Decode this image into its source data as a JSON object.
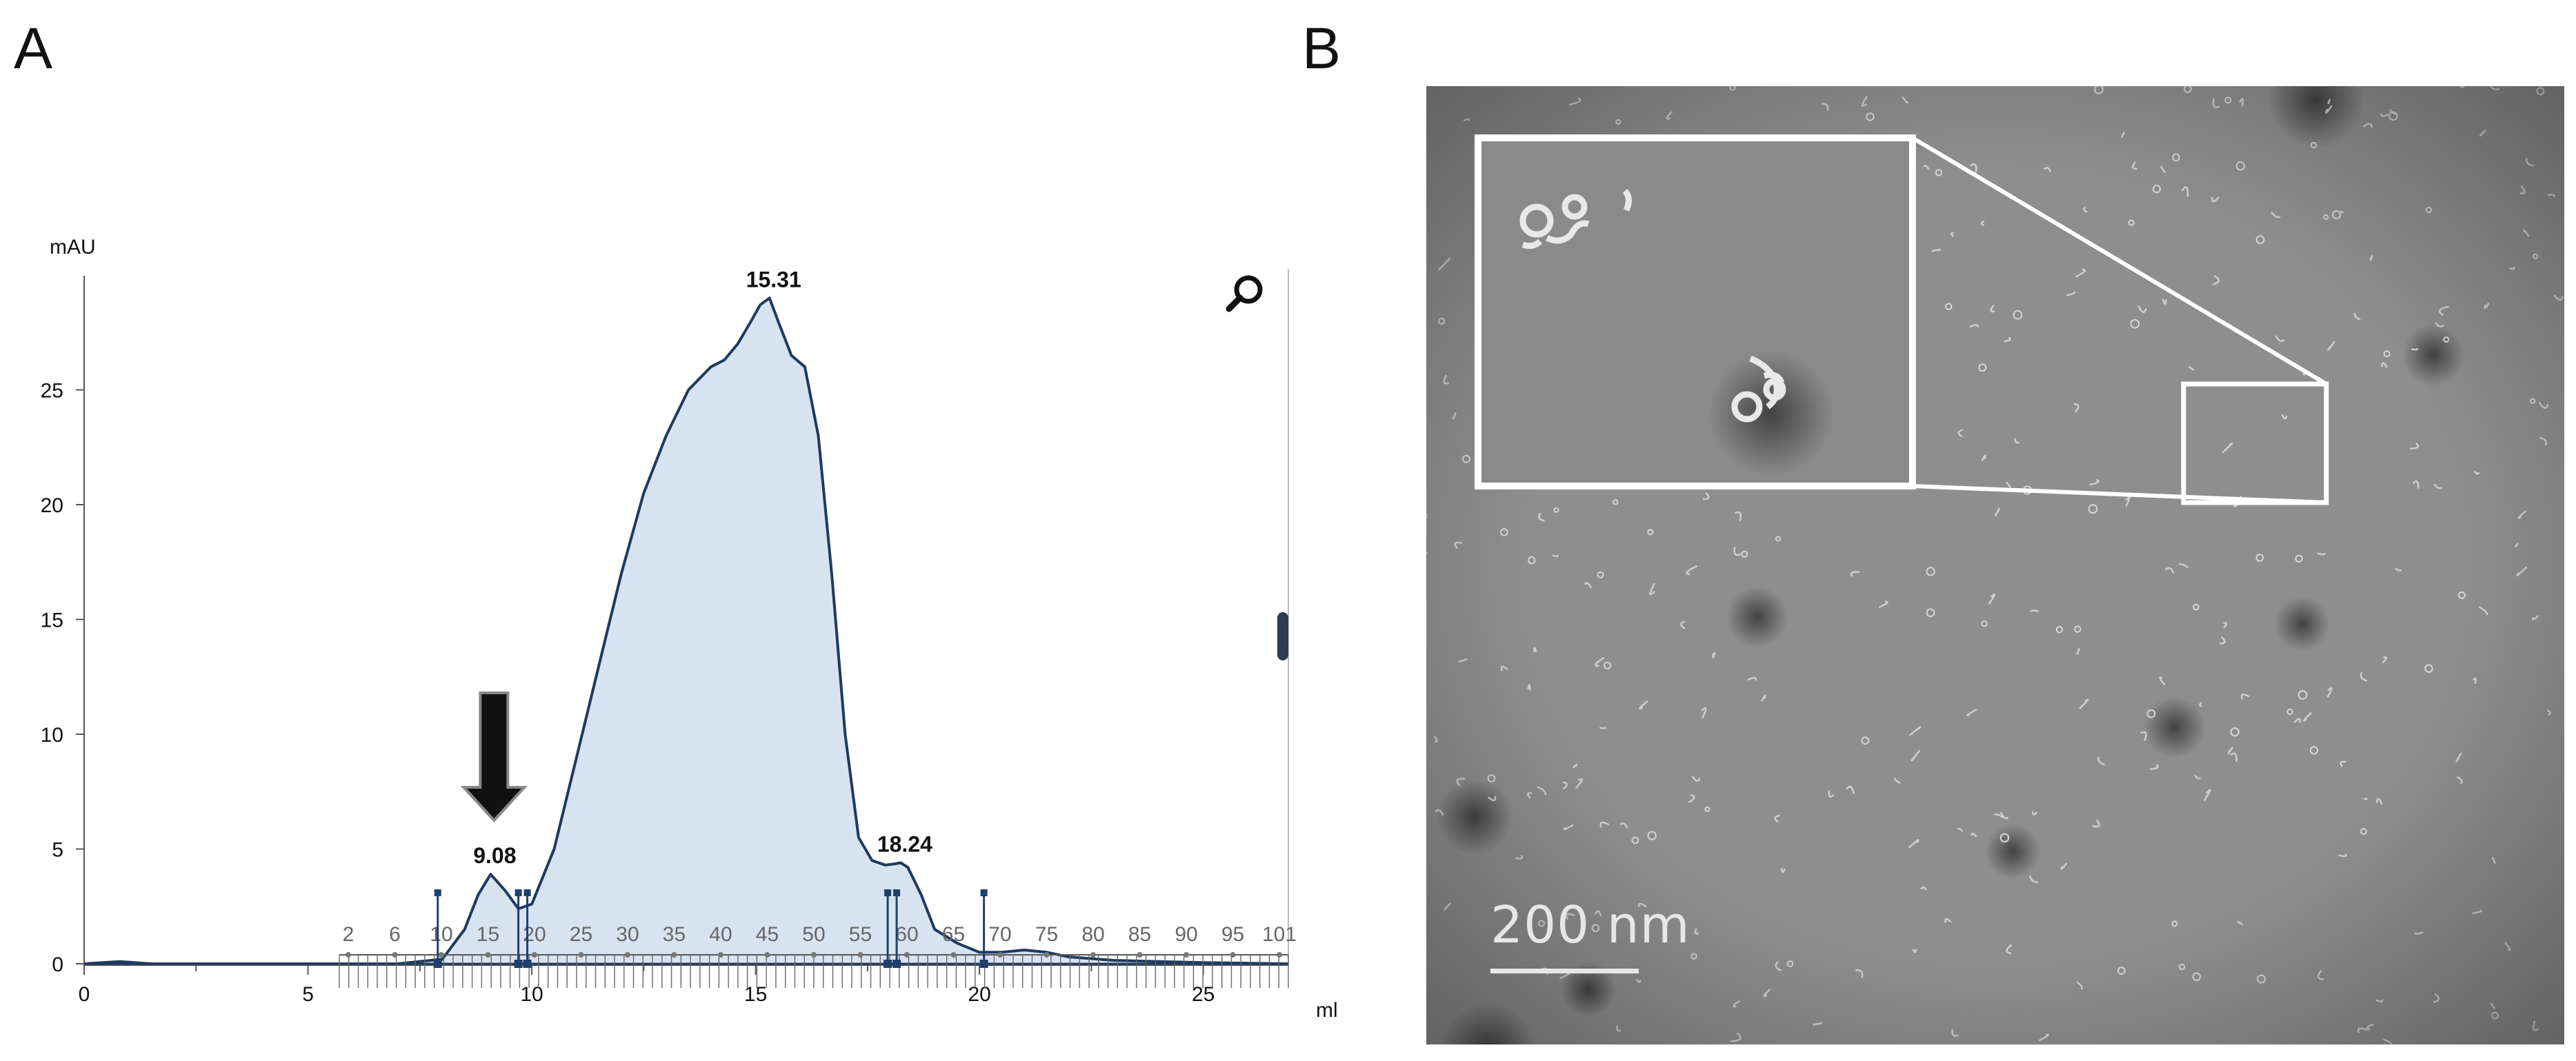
{
  "panels": {
    "a_label": "A",
    "b_label": "B"
  },
  "chart_data": {
    "type": "area",
    "ylabel": "mAU",
    "xlabel": "ml",
    "xlim": [
      0,
      26.9
    ],
    "ylim": [
      -1,
      30
    ],
    "x_ticks": [
      "0",
      "5",
      "10",
      "15",
      "20",
      "25"
    ],
    "y_ticks": [
      "0",
      "5",
      "10",
      "15",
      "20",
      "25"
    ],
    "series": [
      {
        "x": [
          0,
          0.8,
          1.5,
          2,
          5,
          7,
          8,
          8.5,
          8.8,
          9.08,
          9.4,
          9.7,
          10,
          10.5,
          11,
          11.5,
          12,
          12.5,
          13,
          13.5,
          14,
          14.3,
          14.6,
          14.9,
          15.1,
          15.31,
          15.5,
          15.8,
          16.1,
          16.4,
          16.7,
          17,
          17.3,
          17.6,
          17.9,
          18.1,
          18.24,
          18.4,
          18.7,
          19,
          19.5,
          20,
          20.5,
          21,
          21.5,
          22,
          23,
          24,
          25,
          26.9
        ],
        "y": [
          0,
          0.1,
          0,
          0,
          0,
          0,
          0.2,
          1.5,
          3.0,
          3.9,
          3.2,
          2.4,
          2.6,
          5,
          9,
          13,
          17,
          20.5,
          23,
          25,
          26,
          26.3,
          27,
          28,
          28.7,
          29,
          28,
          26.5,
          26,
          23,
          17,
          10,
          5.5,
          4.5,
          4.3,
          4.35,
          4.4,
          4.2,
          3,
          1.5,
          0.9,
          0.5,
          0.5,
          0.6,
          0.5,
          0.3,
          0.15,
          0.1,
          0.05,
          0
        ]
      }
    ],
    "peak_labels": [
      {
        "x": 9.08,
        "y": 3.9,
        "label": "9.08"
      },
      {
        "x": 15.31,
        "y": 29,
        "label": "15.31"
      },
      {
        "x": 18.24,
        "y": 4.4,
        "label": "18.24"
      }
    ],
    "fraction_labels": [
      "2",
      "6",
      "10",
      "15",
      "20",
      "25",
      "30",
      "35",
      "40",
      "45",
      "50",
      "55",
      "60",
      "65",
      "70",
      "75",
      "80",
      "85",
      "90",
      "95",
      "101"
    ],
    "fraction_range": [
      5.7,
      26.9
    ],
    "fraction_markers": [
      7.9,
      9.7,
      9.9,
      17.95,
      18.15,
      20.1
    ],
    "arrow_x": 9.08,
    "colors": {
      "fill": "#d8e3f1",
      "line": "#1e3a5f",
      "axis": "#555555",
      "marker": "#1f3f6f"
    }
  },
  "chart_icons": {
    "zoom": "magnifier-icon"
  },
  "micrograph": {
    "scale_bar_label": "200  nm",
    "inset": "magnified-inset",
    "colors": {
      "background": "#8e8e8e",
      "particle": "#d8d8d8",
      "inset_frame": "#ffffff"
    }
  }
}
